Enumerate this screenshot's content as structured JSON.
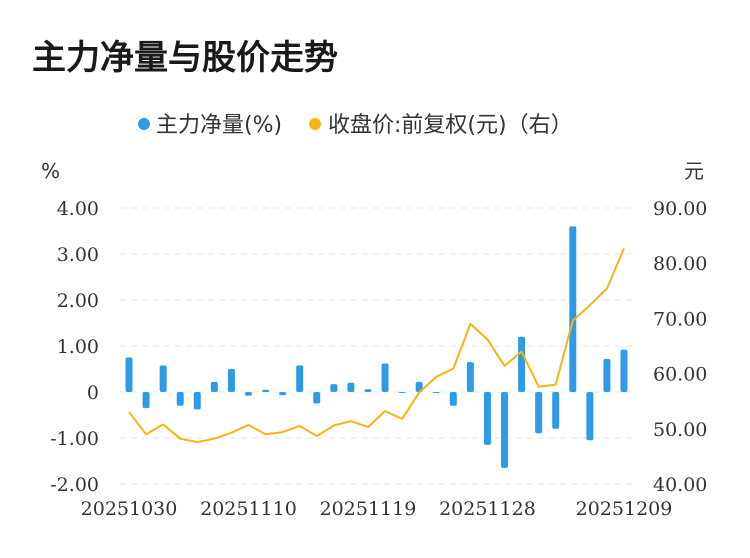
{
  "title": "主力净量与股价走势",
  "chart_data": {
    "type": "bar+line",
    "legend": [
      "主力净量(%)",
      "收盘价:前复权(元)（右）"
    ],
    "y_left_unit": "%",
    "y_right_unit": "元",
    "y_left_ticks": [
      "4.00",
      "3.00",
      "2.00",
      "1.00",
      "0",
      "-1.00",
      "-2.00"
    ],
    "y_right_ticks": [
      "90.00",
      "80.00",
      "70.00",
      "60.00",
      "50.00",
      "40.00"
    ],
    "x_labels": [
      "20251030",
      "20251110",
      "20251119",
      "20251128",
      "20251209"
    ],
    "ylim_left": [
      -2,
      4
    ],
    "ylim_right": [
      40,
      90
    ],
    "grid": true,
    "legend_position": "top-center",
    "series": [
      {
        "name": "主力净量(%)",
        "kind": "bar",
        "color": "#2f9be8",
        "values": [
          0.75,
          -0.35,
          0.58,
          -0.3,
          -0.38,
          0.22,
          0.5,
          -0.08,
          0.05,
          -0.07,
          0.58,
          -0.25,
          0.17,
          0.2,
          0.06,
          0.62,
          -0.02,
          0.22,
          0.0,
          -0.3,
          0.65,
          -1.15,
          -1.65,
          1.2,
          -0.9,
          -0.8,
          3.6,
          -1.05,
          0.72,
          0.92
        ]
      },
      {
        "name": "收盘价:前复权(元)（右）",
        "kind": "line",
        "color": "#f5b414",
        "values": [
          53.0,
          49.0,
          50.8,
          48.2,
          47.6,
          48.2,
          49.3,
          50.7,
          49.0,
          49.4,
          50.5,
          48.7,
          50.6,
          51.4,
          50.3,
          53.2,
          51.8,
          56.6,
          59.4,
          60.9,
          69.0,
          66.2,
          61.4,
          64.0,
          57.6,
          58.0,
          69.6,
          72.4,
          75.4,
          82.7
        ]
      }
    ]
  }
}
